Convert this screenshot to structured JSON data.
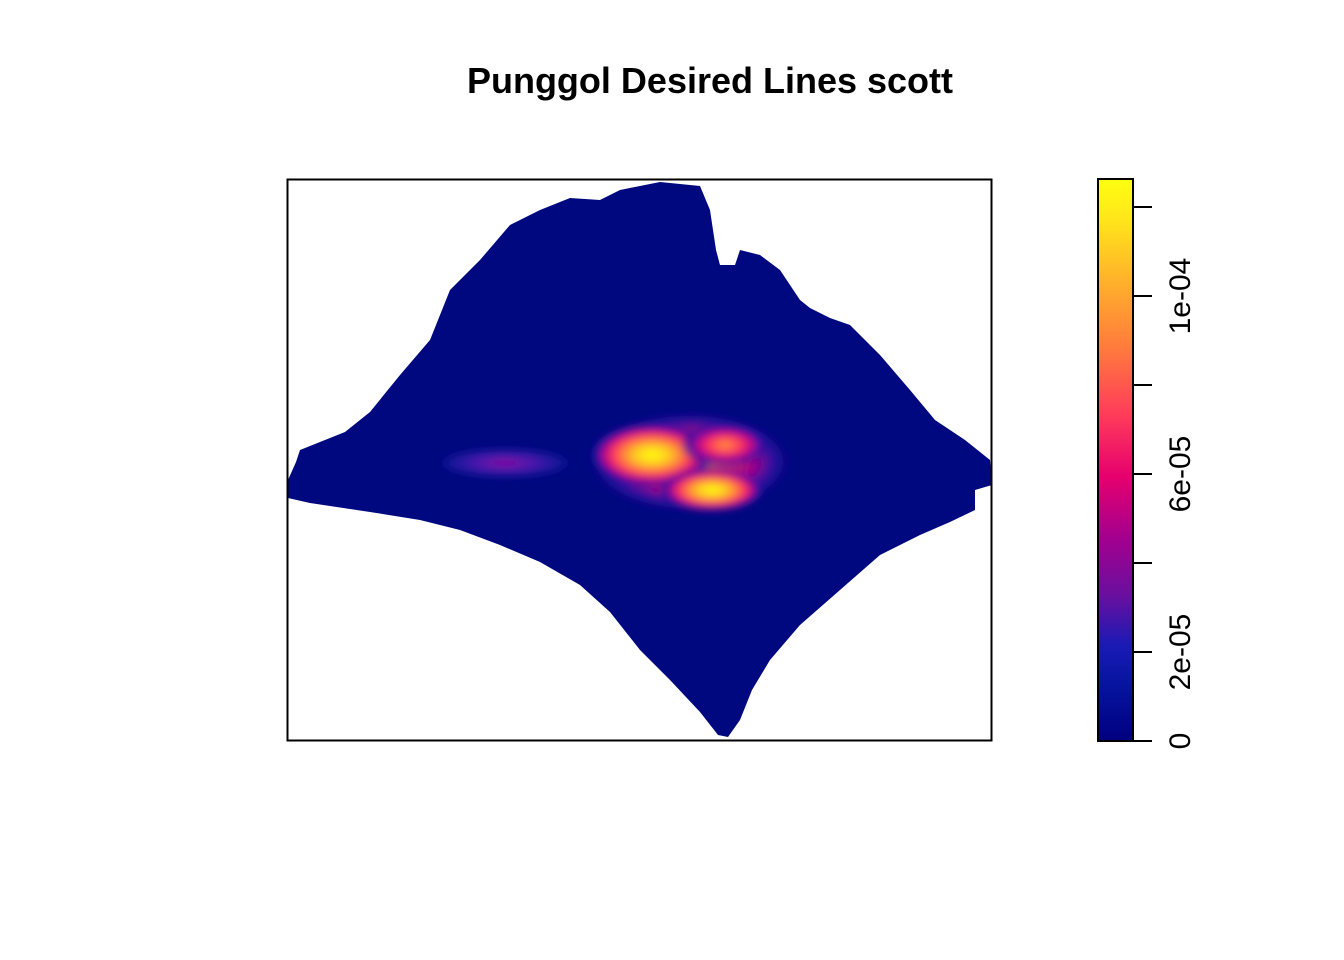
{
  "chart_data": {
    "type": "heatmap",
    "title": "Punggol Desired Lines scott",
    "colorbar": {
      "range": [
        0,
        0.00012
      ],
      "ticks": [
        0,
        2e-05,
        4e-05,
        6e-05,
        8e-05,
        0.0001,
        0.00012
      ],
      "tick_labels": [
        {
          "value": 0,
          "label": "0"
        },
        {
          "value": 2e-05,
          "label": "2e-05"
        },
        {
          "value": 6e-05,
          "label": "6e-05"
        },
        {
          "value": 0.0001,
          "label": "1e-04"
        }
      ],
      "max_value": 0.00012,
      "palette": [
        "#00007f",
        "#0b1a9a",
        "#6a0f9e",
        "#a3008f",
        "#e6006e",
        "#ff3b5a",
        "#ff7b3d",
        "#ffb22a",
        "#ffe61a",
        "#ffff10"
      ]
    },
    "background_value_color": "#00087f",
    "hotspots": [
      {
        "label": "",
        "density": 0.000122
      },
      {
        "label": "",
        "density": 0.000105
      },
      {
        "label": "",
        "density": 2.6e-05
      }
    ],
    "axes_box": true,
    "grid": false,
    "legend": "right"
  }
}
